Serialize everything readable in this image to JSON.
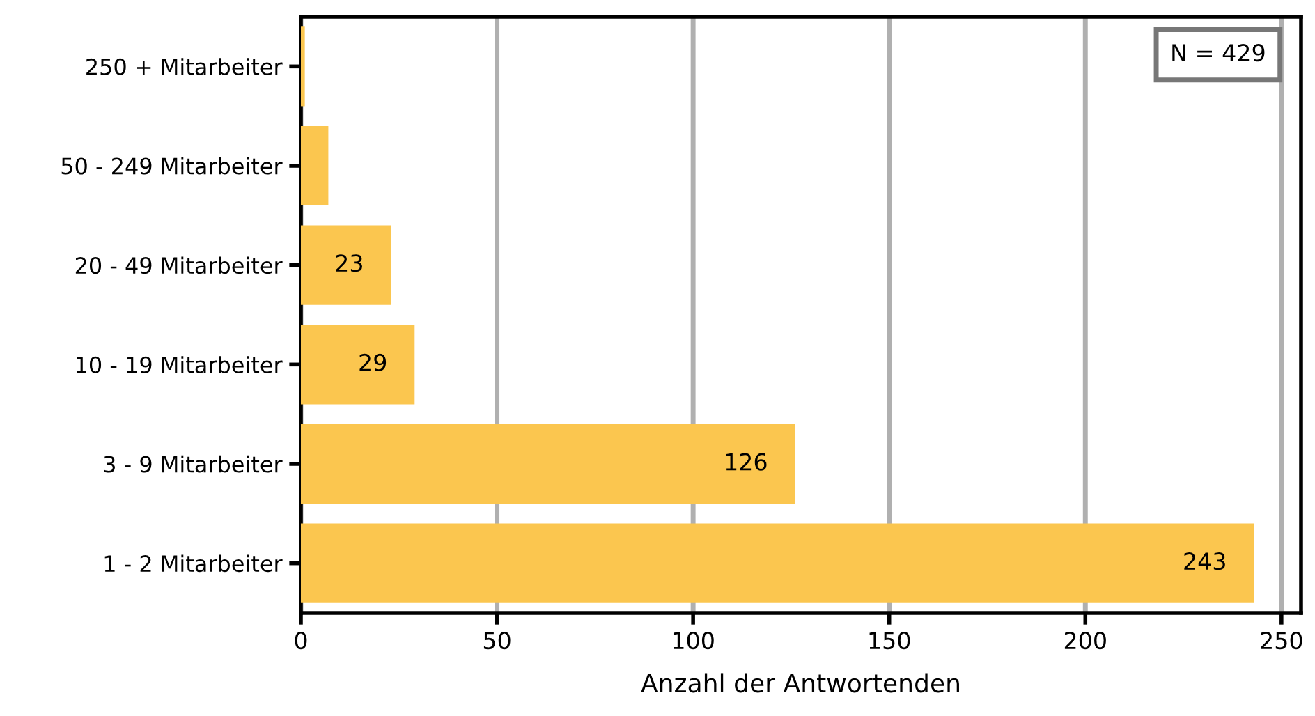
{
  "chart_data": {
    "type": "bar",
    "orientation": "horizontal",
    "xlabel": "Anzahl der Antwortenden",
    "categories": [
      "250 + Mitarbeiter",
      "50 - 249 Mitarbeiter",
      "20 - 49 Mitarbeiter",
      "10 - 19 Mitarbeiter",
      "3 - 9 Mitarbeiter",
      "1 - 2 Mitarbeiter"
    ],
    "values": [
      1,
      7,
      23,
      29,
      126,
      243
    ],
    "value_labels": [
      null,
      null,
      "23",
      "29",
      "126",
      "243"
    ],
    "color": "#fbc64f",
    "xlim": [
      0,
      255
    ],
    "xticks": [
      0,
      50,
      100,
      150,
      200,
      250
    ],
    "grid": "x",
    "annotations": [
      "N = 429"
    ]
  }
}
